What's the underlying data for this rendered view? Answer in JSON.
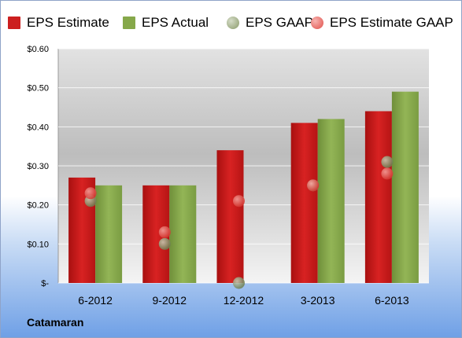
{
  "company": "Catamaran",
  "chart_data": {
    "type": "bar",
    "categories": [
      "6-2012",
      "9-2012",
      "12-2012",
      "3-2013",
      "6-2013"
    ],
    "series": [
      {
        "name": "EPS Estimate",
        "kind": "bar",
        "color": "#cc1f1f",
        "values": [
          0.27,
          0.25,
          0.34,
          0.41,
          0.44
        ]
      },
      {
        "name": "EPS Actual",
        "kind": "bar",
        "color": "#86a84a",
        "values": [
          0.25,
          0.25,
          null,
          0.42,
          0.49
        ]
      },
      {
        "name": "EPS GAAP",
        "kind": "dot",
        "color": "#8a9a6a",
        "values": [
          0.21,
          0.1,
          0.0,
          0.25,
          0.31
        ]
      },
      {
        "name": "EPS Estimate GAAP",
        "kind": "dot",
        "color": "#e0504a",
        "values": [
          0.23,
          0.13,
          0.21,
          0.25,
          0.28
        ]
      }
    ],
    "ylim": [
      0,
      0.6
    ],
    "yticks": [
      0,
      0.1,
      0.2,
      0.3,
      0.4,
      0.5,
      0.6
    ],
    "ytick_labels": [
      "$-",
      "$0.10",
      "$0.20",
      "$0.30",
      "$0.40",
      "$0.50",
      "$0.60"
    ],
    "grid": true,
    "legend_position": "top"
  }
}
